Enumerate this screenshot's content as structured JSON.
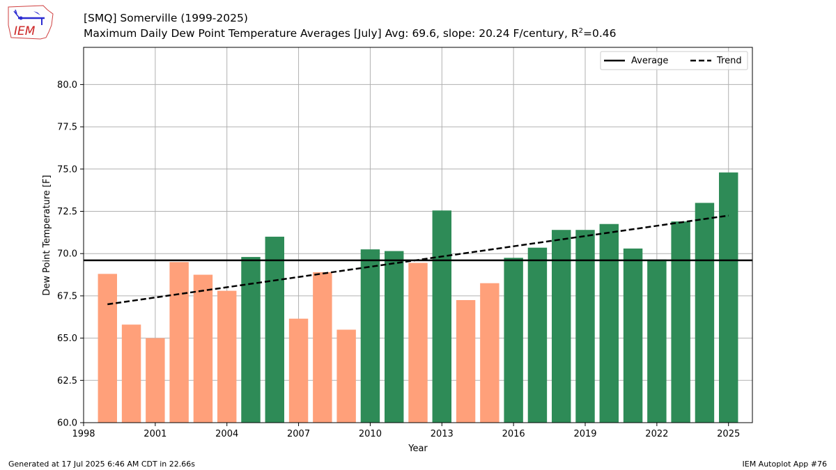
{
  "header": {
    "title_line1": "[SMQ] Somerville (1999-2025)",
    "title_line2_prefix": "Maximum Daily Dew Point Temperature Averages [July]  Avg: 69.6, slope: 20.24 F/century, R",
    "title_line2_sup": "2",
    "title_line2_suffix": "=0.46",
    "logo_text": "IEM"
  },
  "footer": {
    "left": "Generated at 17 Jul 2025 6:46 AM CDT in 22.66s",
    "right": "IEM Autoplot App #76"
  },
  "colors": {
    "above_average": "#2e8b57",
    "below_average": "#ffa07a",
    "average_line": "#000000",
    "trend_line": "#000000",
    "grid": "#b0b0b0"
  },
  "chart_data": {
    "type": "bar",
    "xlabel": "Year",
    "ylabel": "Dew Point Temperature [F]",
    "xlim": [
      1998,
      2026
    ],
    "ylim": [
      60,
      82.2
    ],
    "xticks": [
      1998,
      2001,
      2004,
      2007,
      2010,
      2013,
      2016,
      2019,
      2022,
      2025
    ],
    "yticks": [
      60.0,
      62.5,
      65.0,
      67.5,
      70.0,
      72.5,
      75.0,
      77.5,
      80.0
    ],
    "grid": true,
    "legend_position": "top-right",
    "average": 69.6,
    "trend": {
      "x": [
        1999,
        2025
      ],
      "y": [
        67.0,
        72.25
      ]
    },
    "legend": [
      {
        "label": "Average",
        "style": "solid"
      },
      {
        "label": "Trend",
        "style": "dashed"
      }
    ],
    "years": [
      1999,
      2000,
      2001,
      2002,
      2003,
      2004,
      2005,
      2006,
      2007,
      2008,
      2009,
      2010,
      2011,
      2012,
      2013,
      2014,
      2015,
      2016,
      2017,
      2018,
      2019,
      2020,
      2021,
      2022,
      2023,
      2024,
      2025
    ],
    "values": [
      68.8,
      65.8,
      65.0,
      69.5,
      68.75,
      67.8,
      69.8,
      71.0,
      66.15,
      68.9,
      65.5,
      70.25,
      70.15,
      69.45,
      72.55,
      67.25,
      68.25,
      69.75,
      70.35,
      71.4,
      71.4,
      71.75,
      70.3,
      69.65,
      71.9,
      73.0,
      74.8
    ]
  }
}
